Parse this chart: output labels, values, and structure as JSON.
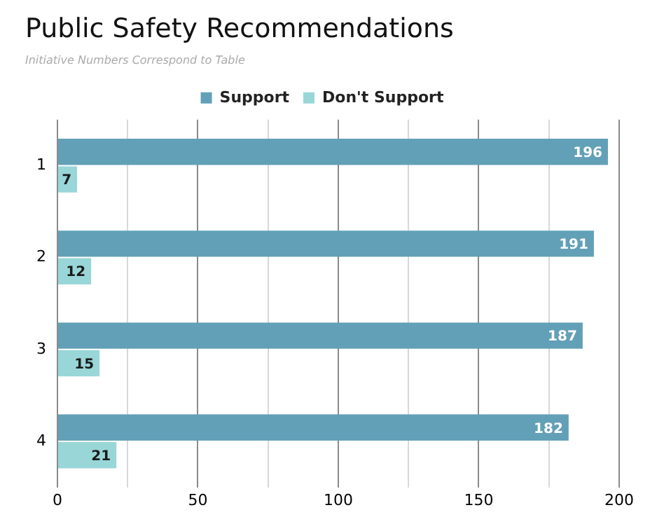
{
  "chart_data": {
    "type": "bar",
    "orientation": "horizontal",
    "title": "Public Safety Recommendations",
    "subtitle": "Initiative Numbers Correspond to Table",
    "categories": [
      "1",
      "2",
      "3",
      "4"
    ],
    "series": [
      {
        "name": "Support",
        "color": "#62a0b7",
        "values": [
          196,
          191,
          187,
          182
        ]
      },
      {
        "name": "Don't Support",
        "color": "#99d6d8",
        "values": [
          7,
          12,
          15,
          21
        ]
      }
    ],
    "xlim": [
      0,
      200
    ],
    "xticks": [
      0,
      {
        "value": 25,
        "label": null
      },
      50,
      {
        "value": 75,
        "label": null
      },
      100,
      {
        "value": 125,
        "label": null
      },
      150,
      {
        "value": 175,
        "label": null
      },
      200
    ],
    "grid": "x",
    "legend": "top",
    "data_labels": true
  }
}
